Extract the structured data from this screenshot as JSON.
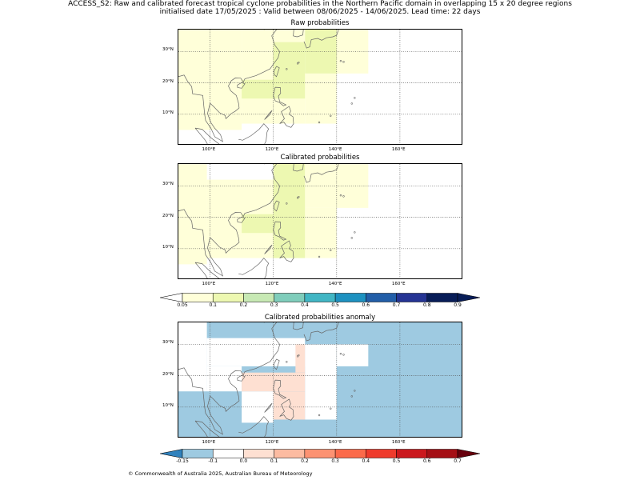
{
  "title": {
    "line1": "ACCESS_S2: Raw and calibrated forecast tropical cyclone probabilities in the Northern Pacific domain in overlapping 15 x 20 degree regions",
    "line2": "initialised date 17/05/2025 :  Valid between 08/06/2025 - 14/06/2025. Lead time: 22 days"
  },
  "panels": [
    {
      "key": "raw",
      "title": "Raw probabilities",
      "cells": [
        {
          "lon0": 90,
          "lon1": 110,
          "lat0": 5,
          "lat1": 37,
          "value": 0.05
        },
        {
          "lon0": 110,
          "lon1": 130,
          "lat0": 7,
          "lat1": 37,
          "value": 0.05
        },
        {
          "lon0": 130,
          "lon1": 140,
          "lat0": 7,
          "lat1": 23,
          "value": 0.05
        },
        {
          "lon0": 140,
          "lon1": 150,
          "lat0": 23,
          "lat1": 37,
          "value": 0.05
        },
        {
          "lon0": 130,
          "lon1": 140,
          "lat0": 23,
          "lat1": 37,
          "value": 0.12
        },
        {
          "lon0": 120,
          "lon1": 130,
          "lat0": 15,
          "lat1": 33,
          "value": 0.12
        },
        {
          "lon0": 110,
          "lon1": 120,
          "lat0": 15,
          "lat1": 21,
          "value": 0.12
        }
      ]
    },
    {
      "key": "calibrated",
      "title": "Calibrated probabilities",
      "cells": [
        {
          "lon0": 90,
          "lon1": 99,
          "lat0": 5,
          "lat1": 37,
          "value": 0.05
        },
        {
          "lon0": 99,
          "lon1": 130,
          "lat0": 7,
          "lat1": 32,
          "value": 0.05
        },
        {
          "lon0": 130,
          "lon1": 150,
          "lat0": 23,
          "lat1": 37,
          "value": 0.05
        },
        {
          "lon0": 130,
          "lon1": 140,
          "lat0": 7,
          "lat1": 23,
          "value": 0.05
        },
        {
          "lon0": 120,
          "lon1": 130,
          "lat0": 7,
          "lat1": 37,
          "value": 0.12
        },
        {
          "lon0": 110,
          "lon1": 120,
          "lat0": 15,
          "lat1": 21,
          "value": 0.12
        }
      ]
    }
  ],
  "anomaly_panel": {
    "title": "Calibrated probabilities anomaly",
    "cells": [
      {
        "lon0": 90,
        "lon1": 180,
        "lat0": 0,
        "lat1": 37,
        "value": -0.12
      },
      {
        "lon0": 90,
        "lon1": 99,
        "lat0": 15,
        "lat1": 37,
        "value": -0.08
      },
      {
        "lon0": 99,
        "lon1": 130,
        "lat0": 23,
        "lat1": 32,
        "value": -0.08
      },
      {
        "lon0": 99,
        "lon1": 110,
        "lat0": 15,
        "lat1": 23,
        "value": -0.08
      },
      {
        "lon0": 110,
        "lon1": 120,
        "lat0": 5,
        "lat1": 15,
        "value": -0.08
      },
      {
        "lon0": 130,
        "lon1": 140,
        "lat0": 6,
        "lat1": 30,
        "value": -0.08
      },
      {
        "lon0": 140,
        "lon1": 150,
        "lat0": 23,
        "lat1": 30,
        "value": -0.08
      },
      {
        "lon0": 110,
        "lon1": 130,
        "lat0": 15,
        "lat1": 21,
        "value": 0
      },
      {
        "lon0": 120,
        "lon1": 130,
        "lat0": 6,
        "lat1": 15,
        "value": 0
      },
      {
        "lon0": 127,
        "lon1": 130,
        "lat0": 21,
        "lat1": 30,
        "value": 0
      }
    ]
  },
  "lon_ticks": [
    {
      "value": 100,
      "label": "100°E"
    },
    {
      "value": 120,
      "label": "120°E"
    },
    {
      "value": 140,
      "label": "140°E"
    },
    {
      "value": 160,
      "label": "160°E"
    }
  ],
  "lat_ticks": [
    {
      "value": 10,
      "label": "10°N"
    },
    {
      "value": 20,
      "label": "20°N"
    },
    {
      "value": 30,
      "label": "30°N"
    }
  ],
  "map_extent": {
    "lon_min": 90,
    "lon_max": 180,
    "lat_min": 0,
    "lat_max": 37
  },
  "prob_colorbar": {
    "ticks": [
      "0.05",
      "0.1",
      "0.2",
      "0.3",
      "0.4",
      "0.5",
      "0.6",
      "0.7",
      "0.8",
      "0.9"
    ],
    "colors": [
      "#ffffd9",
      "#edf8b1",
      "#c7e9b4",
      "#7fcdbb",
      "#41b6c4",
      "#1d91c0",
      "#225ea8",
      "#253494",
      "#081d58"
    ],
    "under": "#ffffff",
    "over": "#081d58"
  },
  "anomaly_colorbar": {
    "ticks": [
      "-0.15",
      "-0.1",
      "0.0",
      "0.1",
      "0.2",
      "0.3",
      "0.4",
      "0.5",
      "0.6",
      "0.7"
    ],
    "colors": [
      "#9ecae1",
      "#ffffff",
      "#fee0d2",
      "#fcbba1",
      "#fc9272",
      "#fb6a4a",
      "#ef3b2c",
      "#cb181d",
      "#a50f15"
    ],
    "under": "#3182bd",
    "over": "#67000d"
  },
  "footer": "© Commonwealth of Australia 2025, Australian Bureau of Meteorology"
}
